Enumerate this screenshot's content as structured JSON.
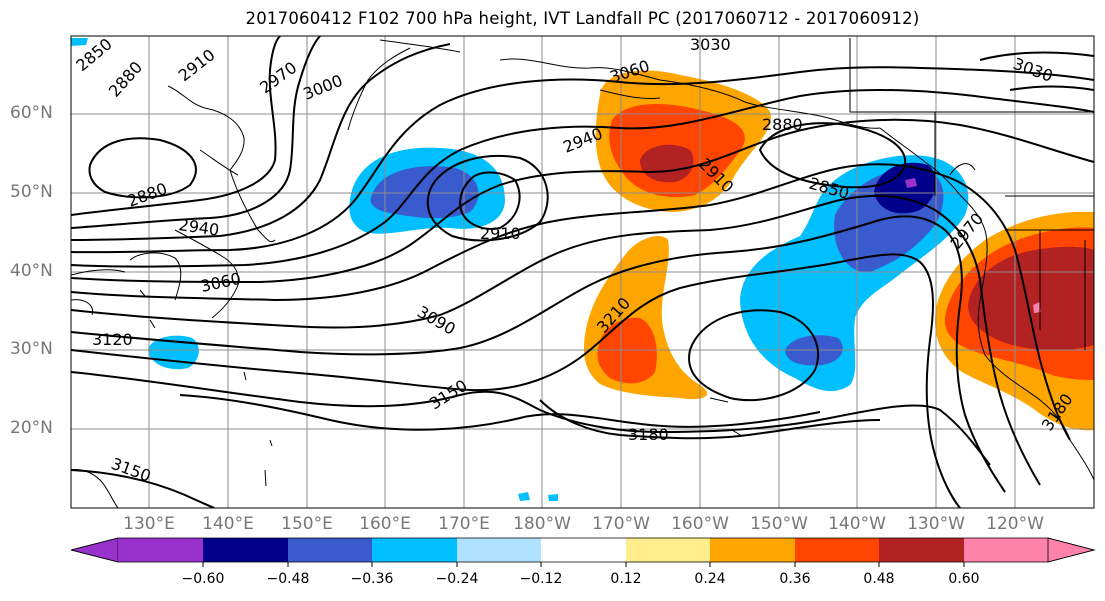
{
  "title": "2017060412 F102 700 hPa height, IVT Landfall PC (2017060712 - 2017060912)",
  "lat_labels": [
    "60°N",
    "50°N",
    "40°N",
    "30°N",
    "20°N"
  ],
  "lon_labels": [
    "130°E",
    "140°E",
    "150°E",
    "160°E",
    "170°E",
    "180°W",
    "170°W",
    "160°W",
    "150°W",
    "140°W",
    "130°W",
    "120°W"
  ],
  "contour_labels": [
    "2850",
    "2880",
    "2910",
    "2970",
    "3000",
    "3030",
    "3060",
    "2940",
    "2880",
    "2910",
    "2850",
    "3030",
    "2880",
    "2940",
    "2910",
    "2970",
    "3060",
    "3090",
    "3120",
    "3210",
    "3150",
    "3180",
    "3150",
    "3180"
  ],
  "colorbar": {
    "ticks": [
      "−0.60",
      "−0.48",
      "−0.36",
      "−0.24",
      "−0.12",
      "0.12",
      "0.24",
      "0.36",
      "0.48",
      "0.60"
    ],
    "colors": [
      "#9932cc",
      "#00008b",
      "#3a5bcd",
      "#00bfff",
      "#b0e2ff",
      "#ffffff",
      "#ffec8b",
      "#ffa500",
      "#ff4500",
      "#b22222",
      "#ff82ab"
    ]
  }
}
